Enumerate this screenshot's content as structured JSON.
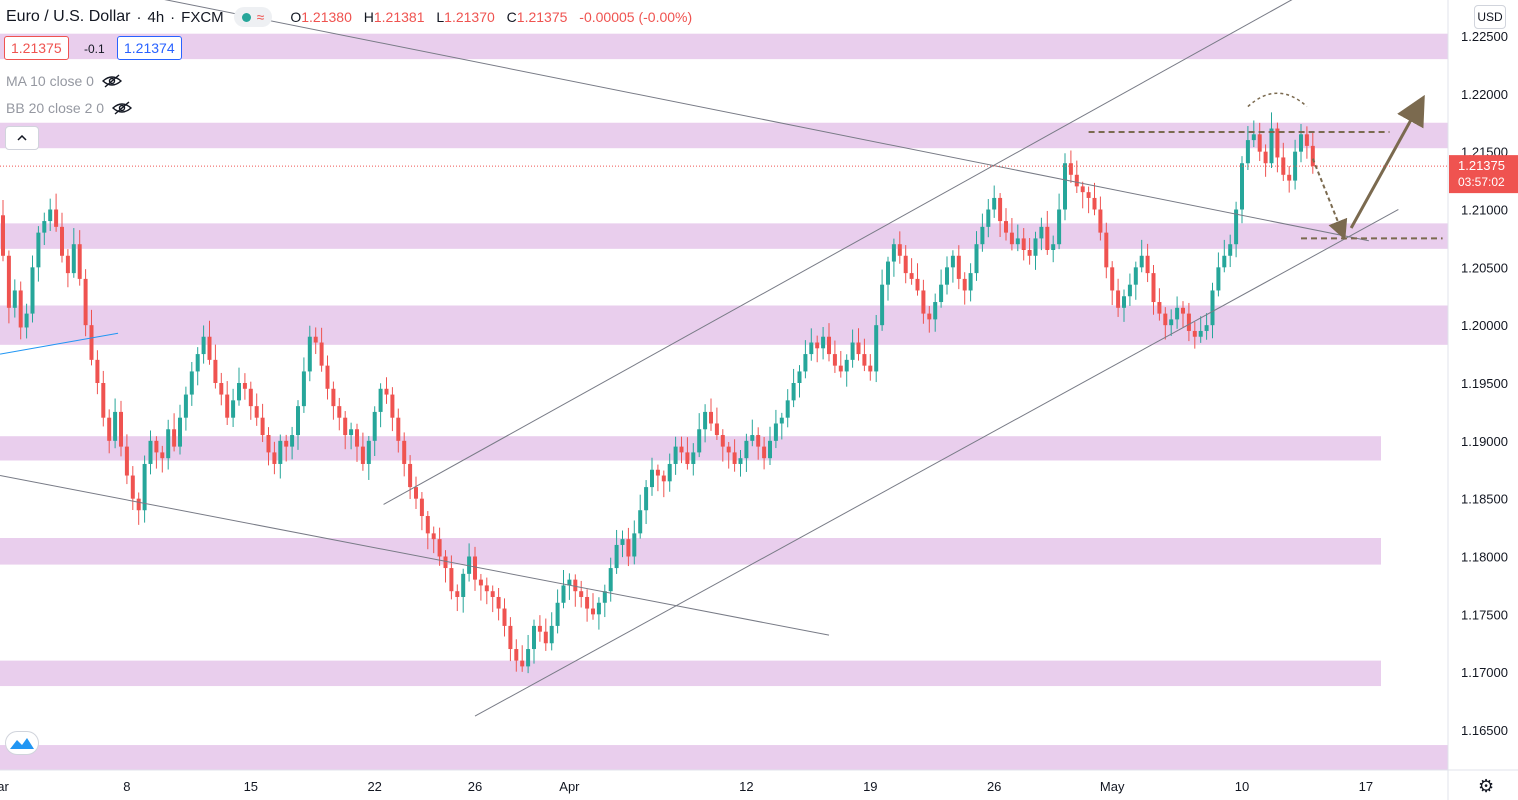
{
  "header": {
    "title": "Euro / U.S. Dollar",
    "interval": "4h",
    "exchange": "FXCM",
    "ohlc": [
      {
        "k": "O",
        "v": "1.21380"
      },
      {
        "k": "H",
        "v": "1.21381"
      },
      {
        "k": "L",
        "v": "1.21370"
      },
      {
        "k": "C",
        "v": "1.21375"
      },
      {
        "k": "",
        "v": "-0.00005 (-0.00%)"
      }
    ]
  },
  "quote": {
    "bid": "1.21375",
    "spread": "-0.1",
    "ask": "1.21374"
  },
  "indicators": {
    "ma": "MA 10 close 0",
    "bb": "BB 20 close 2 0"
  },
  "axis": {
    "currency": "USD",
    "price_label": "1.21375",
    "countdown": "03:57:02"
  },
  "colors": {
    "up": "#26a69a",
    "down": "#ef5350",
    "zone": "#e1bee7",
    "line": "#787b86",
    "arrow": "#7b6a4f",
    "last": "#ef5350"
  },
  "chart_data": {
    "type": "candlestick",
    "symbol": "EURUSD",
    "interval": "4h",
    "ylim": [
      1.1625,
      1.2265
    ],
    "y_ticks": [
      "1.16500",
      "1.17000",
      "1.17500",
      "1.18000",
      "1.18500",
      "1.19000",
      "1.19500",
      "1.20000",
      "1.20500",
      "1.21000",
      "1.21500",
      "1.22000",
      "1.22500"
    ],
    "x_ticks": [
      {
        "label": "ar",
        "bar": 0
      },
      {
        "label": "8",
        "bar": 21
      },
      {
        "label": "15",
        "bar": 42
      },
      {
        "label": "22",
        "bar": 63
      },
      {
        "label": "26",
        "bar": 80
      },
      {
        "label": "Apr",
        "bar": 96
      },
      {
        "label": "12",
        "bar": 126
      },
      {
        "label": "19",
        "bar": 147
      },
      {
        "label": "26",
        "bar": 168
      },
      {
        "label": "May",
        "bar": 188
      },
      {
        "label": "10",
        "bar": 210
      },
      {
        "label": "17",
        "bar": 231
      }
    ],
    "candles_start_bar": -1,
    "bars_visible": 246,
    "closes": [
      1.2095,
      1.206,
      1.2015,
      1.203,
      1.1998,
      1.201,
      1.205,
      1.208,
      1.209,
      1.21,
      1.2085,
      1.206,
      1.2045,
      1.207,
      1.204,
      1.2,
      1.197,
      1.195,
      1.192,
      1.19,
      1.1925,
      1.1895,
      1.187,
      1.185,
      1.184,
      1.188,
      1.19,
      1.189,
      1.1885,
      1.191,
      1.1895,
      1.192,
      1.194,
      1.196,
      1.1975,
      1.199,
      1.197,
      1.195,
      1.194,
      1.192,
      1.1935,
      1.195,
      1.1945,
      1.193,
      1.192,
      1.1905,
      1.189,
      1.188,
      1.19,
      1.1895,
      1.1905,
      1.193,
      1.196,
      1.199,
      1.1985,
      1.1965,
      1.1945,
      1.193,
      1.192,
      1.1905,
      1.191,
      1.1895,
      1.188,
      1.19,
      1.1925,
      1.1945,
      1.194,
      1.192,
      1.19,
      1.188,
      1.186,
      1.185,
      1.1835,
      1.182,
      1.1815,
      1.18,
      1.179,
      1.177,
      1.1765,
      1.1785,
      1.18,
      1.178,
      1.1775,
      1.177,
      1.1765,
      1.1755,
      1.174,
      1.172,
      1.171,
      1.1705,
      1.172,
      1.174,
      1.1735,
      1.1725,
      1.174,
      1.176,
      1.1775,
      1.178,
      1.177,
      1.1765,
      1.1755,
      1.175,
      1.176,
      1.177,
      1.179,
      1.181,
      1.1815,
      1.18,
      1.182,
      1.184,
      1.186,
      1.1875,
      1.187,
      1.1865,
      1.188,
      1.1895,
      1.189,
      1.188,
      1.189,
      1.191,
      1.1925,
      1.1915,
      1.1905,
      1.1895,
      1.189,
      1.188,
      1.1885,
      1.19,
      1.1905,
      1.1895,
      1.1885,
      1.19,
      1.1915,
      1.192,
      1.1935,
      1.195,
      1.196,
      1.1975,
      1.1985,
      1.198,
      1.199,
      1.1975,
      1.1965,
      1.196,
      1.197,
      1.1985,
      1.1975,
      1.1965,
      1.196,
      1.2,
      1.2035,
      1.2055,
      1.207,
      1.206,
      1.2045,
      1.204,
      1.203,
      1.201,
      1.2005,
      1.202,
      1.2035,
      1.205,
      1.206,
      1.204,
      1.203,
      1.2045,
      1.207,
      1.2085,
      1.21,
      1.211,
      1.209,
      1.208,
      1.207,
      1.2075,
      1.2065,
      1.206,
      1.2075,
      1.2085,
      1.2065,
      1.207,
      1.21,
      1.214,
      1.213,
      1.212,
      1.2115,
      1.211,
      1.21,
      1.208,
      1.205,
      1.203,
      1.2015,
      1.2025,
      1.2035,
      1.205,
      1.206,
      1.2045,
      1.202,
      1.201,
      1.2,
      1.2005,
      1.2015,
      1.201,
      1.1995,
      1.199,
      1.1995,
      1.2,
      1.203,
      1.205,
      1.206,
      1.207,
      1.21,
      1.214,
      1.216,
      1.2165,
      1.215,
      1.214,
      1.217,
      1.2145,
      1.213,
      1.2125,
      1.215,
      1.2165,
      1.2155,
      1.21375
    ],
    "zones": [
      {
        "from": 1.223,
        "to": 1.2252,
        "extends_right": true
      },
      {
        "from": 1.2153,
        "to": 1.2175,
        "extends_right": true
      },
      {
        "from": 1.2066,
        "to": 1.2088,
        "extends_right": true
      },
      {
        "from": 1.1983,
        "to": 1.2017,
        "extends_right": true
      },
      {
        "from": 1.1883,
        "to": 1.1904,
        "extends_right": false
      },
      {
        "from": 1.1793,
        "to": 1.1816,
        "extends_right": false
      },
      {
        "from": 1.1688,
        "to": 1.171,
        "extends_right": false
      },
      {
        "from": 1.1615,
        "to": 1.1637,
        "extends_right": true
      }
    ],
    "trendlines": [
      {
        "from": [
          -0.5,
          1.231
        ],
        "to": [
          231.5,
          1.2073
        ],
        "color": "#787b86"
      },
      {
        "from": [
          -0.5,
          1.187
        ],
        "to": [
          140.0,
          1.1732
        ],
        "color": "#787b86"
      },
      {
        "from": [
          80.0,
          1.1662
        ],
        "to": [
          236.5,
          1.21
        ],
        "color": "#787b86"
      },
      {
        "from": [
          64.5,
          1.1845
        ],
        "to": [
          221.5,
          1.229
        ],
        "color": "#787b86"
      },
      {
        "from": [
          -0.5,
          1.1975
        ],
        "to": [
          19.5,
          1.1993
        ],
        "color": "#2196f3"
      }
    ],
    "levels": [
      {
        "price": 1.2167,
        "from_bar": 184,
        "to_bar": 235,
        "style": "dashed"
      },
      {
        "price": 1.2075,
        "from_bar": 220,
        "to_bar": 244,
        "style": "dashed"
      }
    ],
    "projection": {
      "arc": {
        "from": [
          211,
          1.2189
        ],
        "peak": [
          216,
          1.22
        ],
        "to": [
          221,
          1.2189
        ]
      },
      "down_arrow": {
        "from": [
          222,
          1.2144
        ],
        "to": [
          227,
          1.208
        ]
      },
      "up_arrow": {
        "from": [
          228.5,
          1.2084
        ],
        "to": [
          240,
          1.219
        ]
      }
    },
    "last_price": 1.21375
  }
}
